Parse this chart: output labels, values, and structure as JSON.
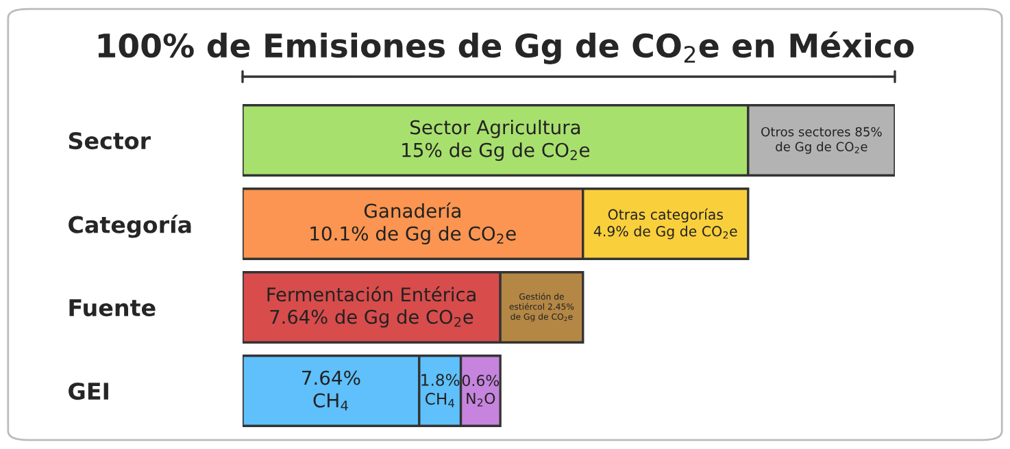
{
  "chart_data": {
    "type": "other",
    "title": "100% de Emisiones de Gg de CO$_{2}$e en México",
    "categories": [
      "Sector",
      "Categoría",
      "Fuente",
      "GEI"
    ],
    "series": [
      {
        "colors": [
          "#a8e06e",
          "#fb9551",
          "#d84c4c",
          "#5fc0fb"
        ],
        "values": [
          15,
          10.1,
          7.64,
          7.64
        ],
        "value_labels": [
          "Sector Agricultura\n15% de Gg de CO$_{2}$e",
          "Ganadería\n10.1% de Gg de CO$_{2}$e",
          "Fermentación Entérica\n7.64% de Gg de CO$_{2}$e",
          "7.64%\nCH$_{4}$"
        ]
      },
      {
        "colors": [
          "#b3b3b3",
          "#f9cf3c",
          "#b48745",
          "#5fc0fb"
        ],
        "values": [
          85,
          4.9,
          2.45,
          1.8
        ],
        "value_labels": [
          "Otros sectores 85%\nde Gg de CO$_{2}$e",
          "Otras categorías\n4.9% de Gg de CO$_{2}$e",
          "Gestión de\nestiércol 2.45%\nde Gg de CO$_{2}$e",
          "1.8%\nCH$_{4}$"
        ]
      },
      {
        "colors": [
          null,
          null,
          null,
          "#c684de"
        ],
        "values": [
          null,
          null,
          null,
          0.6
        ],
        "value_labels": [
          null,
          null,
          null,
          "0.6%\nN$_{2}$O"
        ]
      }
    ]
  }
}
